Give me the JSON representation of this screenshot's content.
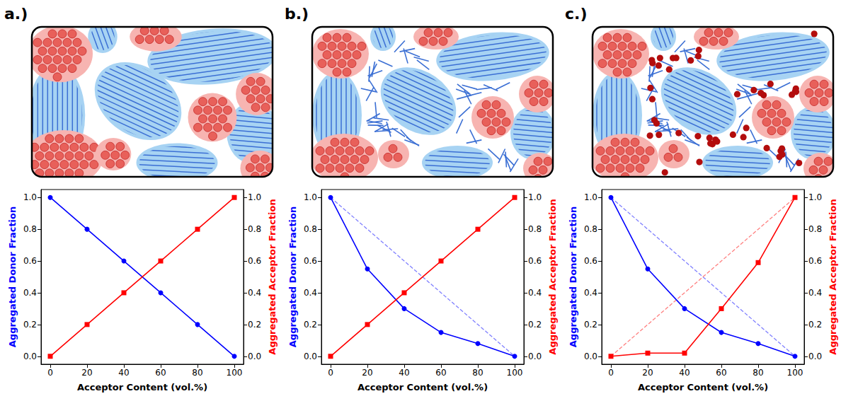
{
  "chart_data": [
    {
      "type": "line",
      "title": "a.)",
      "xlabel": "Acceptor Content (vol.%)",
      "ylabel": "Aggregated Donor Fraction",
      "y2label": "Aggregated Acceptor Fraction",
      "x": [
        0,
        20,
        40,
        60,
        80,
        100
      ],
      "xlim": [
        -5,
        105
      ],
      "xticks": [
        0,
        20,
        40,
        60,
        80,
        100
      ],
      "ylim": [
        -0.05,
        1.05
      ],
      "yticks": [
        {
          "value": 0,
          "label": "0.0"
        },
        0.2,
        0.4,
        0.6,
        0.8,
        {
          "value": 1,
          "label": "1.0"
        }
      ],
      "y2lim": [
        -0.05,
        1.05
      ],
      "y2ticks": [
        {
          "value": 0,
          "label": "0.0"
        },
        0.2,
        0.4,
        0.6,
        0.8,
        {
          "value": 1,
          "label": "1.0"
        }
      ],
      "grid": false,
      "series": [
        {
          "color": "#0000ff",
          "marker": "circle",
          "line_style": "solid",
          "values": [
            1.0,
            0.8,
            0.6,
            0.4,
            0.2,
            0.0
          ]
        },
        {
          "color": "#ff0000",
          "marker": "square",
          "line_style": "solid",
          "axis": "y2",
          "values": [
            0.0,
            0.2,
            0.4,
            0.6,
            0.8,
            1.0
          ]
        }
      ]
    },
    {
      "type": "line",
      "title": "b.)",
      "xlabel": "Acceptor Content (vol.%)",
      "ylabel": "Aggregated Donor Fraction",
      "y2label": "Aggregated Acceptor Fraction",
      "x": [
        0,
        20,
        40,
        60,
        80,
        100
      ],
      "xlim": [
        -5,
        105
      ],
      "xticks": [
        0,
        20,
        40,
        60,
        80,
        100
      ],
      "ylim": [
        -0.05,
        1.05
      ],
      "yticks": [
        {
          "value": 0,
          "label": "0.0"
        },
        0.2,
        0.4,
        0.6,
        0.8,
        {
          "value": 1,
          "label": "1.0"
        }
      ],
      "y2lim": [
        -0.05,
        1.05
      ],
      "y2ticks": [
        {
          "value": 0,
          "label": "0.0"
        },
        0.2,
        0.4,
        0.6,
        0.8,
        {
          "value": 1,
          "label": "1.0"
        }
      ],
      "grid": false,
      "series": [
        {
          "color": "#8080ff",
          "marker": "none",
          "line_style": "dashed",
          "values": [
            1.0,
            0.8,
            0.6,
            0.4,
            0.2,
            0.0
          ]
        },
        {
          "color": "#0000ff",
          "marker": "circle",
          "line_style": "solid",
          "values": [
            1.0,
            0.55,
            0.3,
            0.15,
            0.08,
            0.0
          ]
        },
        {
          "color": "#ff0000",
          "marker": "square",
          "line_style": "solid",
          "axis": "y2",
          "values": [
            0.0,
            0.2,
            0.4,
            0.6,
            0.8,
            1.0
          ]
        }
      ]
    },
    {
      "type": "line",
      "title": "c.)",
      "xlabel": "Acceptor Content (vol.%)",
      "ylabel": "Aggregated Donor Fraction",
      "y2label": "Aggregated Acceptor Fraction",
      "x": [
        0,
        20,
        40,
        60,
        80,
        100
      ],
      "xlim": [
        -5,
        105
      ],
      "xticks": [
        0,
        20,
        40,
        60,
        80,
        100
      ],
      "ylim": [
        -0.05,
        1.05
      ],
      "yticks": [
        {
          "value": 0,
          "label": "0.0"
        },
        0.2,
        0.4,
        0.6,
        0.8,
        {
          "value": 1,
          "label": "1.0"
        }
      ],
      "y2lim": [
        -0.05,
        1.05
      ],
      "y2ticks": [
        {
          "value": 0,
          "label": "0.0"
        },
        0.2,
        0.4,
        0.6,
        0.8,
        {
          "value": 1,
          "label": "1.0"
        }
      ],
      "grid": false,
      "series": [
        {
          "color": "#8080ff",
          "marker": "none",
          "line_style": "dashed",
          "values": [
            1.0,
            0.8,
            0.6,
            0.4,
            0.2,
            0.0
          ]
        },
        {
          "color": "#ff8080",
          "marker": "none",
          "line_style": "dashed",
          "axis": "y2",
          "values": [
            0.0,
            0.2,
            0.4,
            0.6,
            0.8,
            1.0
          ]
        },
        {
          "color": "#0000ff",
          "marker": "circle",
          "line_style": "solid",
          "values": [
            1.0,
            0.55,
            0.3,
            0.15,
            0.08,
            0.0
          ]
        },
        {
          "color": "#ff0000",
          "marker": "square",
          "line_style": "solid",
          "axis": "y2",
          "values": [
            0.0,
            0.02,
            0.02,
            0.3,
            0.59,
            1.0
          ]
        }
      ]
    }
  ]
}
